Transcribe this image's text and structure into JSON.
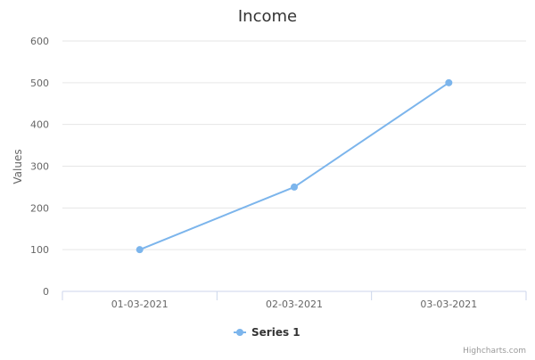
{
  "chart_data": {
    "type": "line",
    "title": "Income",
    "xlabel": "",
    "ylabel": "Values",
    "categories": [
      "01-03-2021",
      "02-03-2021",
      "03-03-2021"
    ],
    "series": [
      {
        "name": "Series 1",
        "values": [
          100,
          250,
          500
        ],
        "color": "#7cb5ec"
      }
    ],
    "ylim": [
      0,
      600
    ],
    "yticks": [
      0,
      100,
      200,
      300,
      400,
      500,
      600
    ],
    "grid": true,
    "legend": "bottom-center"
  },
  "credits": "Highcharts.com"
}
